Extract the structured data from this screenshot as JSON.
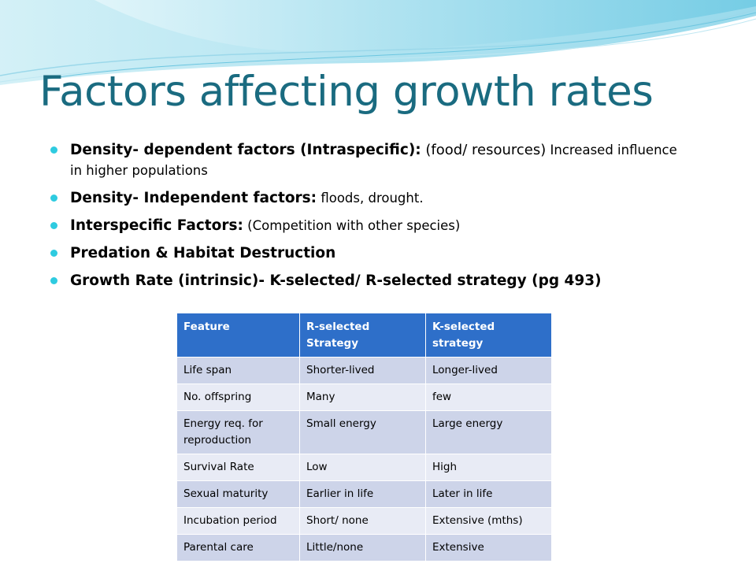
{
  "slide": {
    "title": "Factors affecting growth rates",
    "bullets": [
      {
        "bold": "Density- dependent factors (Intraspecific):",
        "large": " (food/ resources)",
        "rest": " Increased influence in higher populations"
      },
      {
        "bold": "Density- Independent factors:",
        "large": "",
        "rest": " floods, drought."
      },
      {
        "bold": "Interspecific Factors:",
        "large": "",
        "rest": " (Competition with other species)"
      },
      {
        "bold": "Predation & Habitat Destruction",
        "large": "",
        "rest": ""
      },
      {
        "bold": "Growth Rate (intrinsic)- K-selected/ R-selected strategy (pg 493)",
        "large": "",
        "rest": ""
      }
    ]
  },
  "table": {
    "headers": [
      "Feature",
      "R-selected Strategy",
      "K-selected strategy"
    ],
    "rows": [
      [
        "Life span",
        "Shorter-lived",
        "Longer-lived"
      ],
      [
        "No. offspring",
        "Many",
        "few"
      ],
      [
        "Energy req. for reproduction",
        "Small energy",
        "Large energy"
      ],
      [
        "Survival Rate",
        "Low",
        "High"
      ],
      [
        "Sexual maturity",
        "Earlier in life",
        "Later in life"
      ],
      [
        "Incubation period",
        "Short/ none",
        "Extensive (mths)"
      ],
      [
        "Parental care",
        "Little/none",
        "Extensive"
      ]
    ]
  },
  "colors": {
    "title": "#1a6b80",
    "bullet_dot": "#2ecbe0",
    "table_header": "#2e6fc9",
    "row_dark": "#cdd4e9",
    "row_light": "#e8ebf5"
  }
}
